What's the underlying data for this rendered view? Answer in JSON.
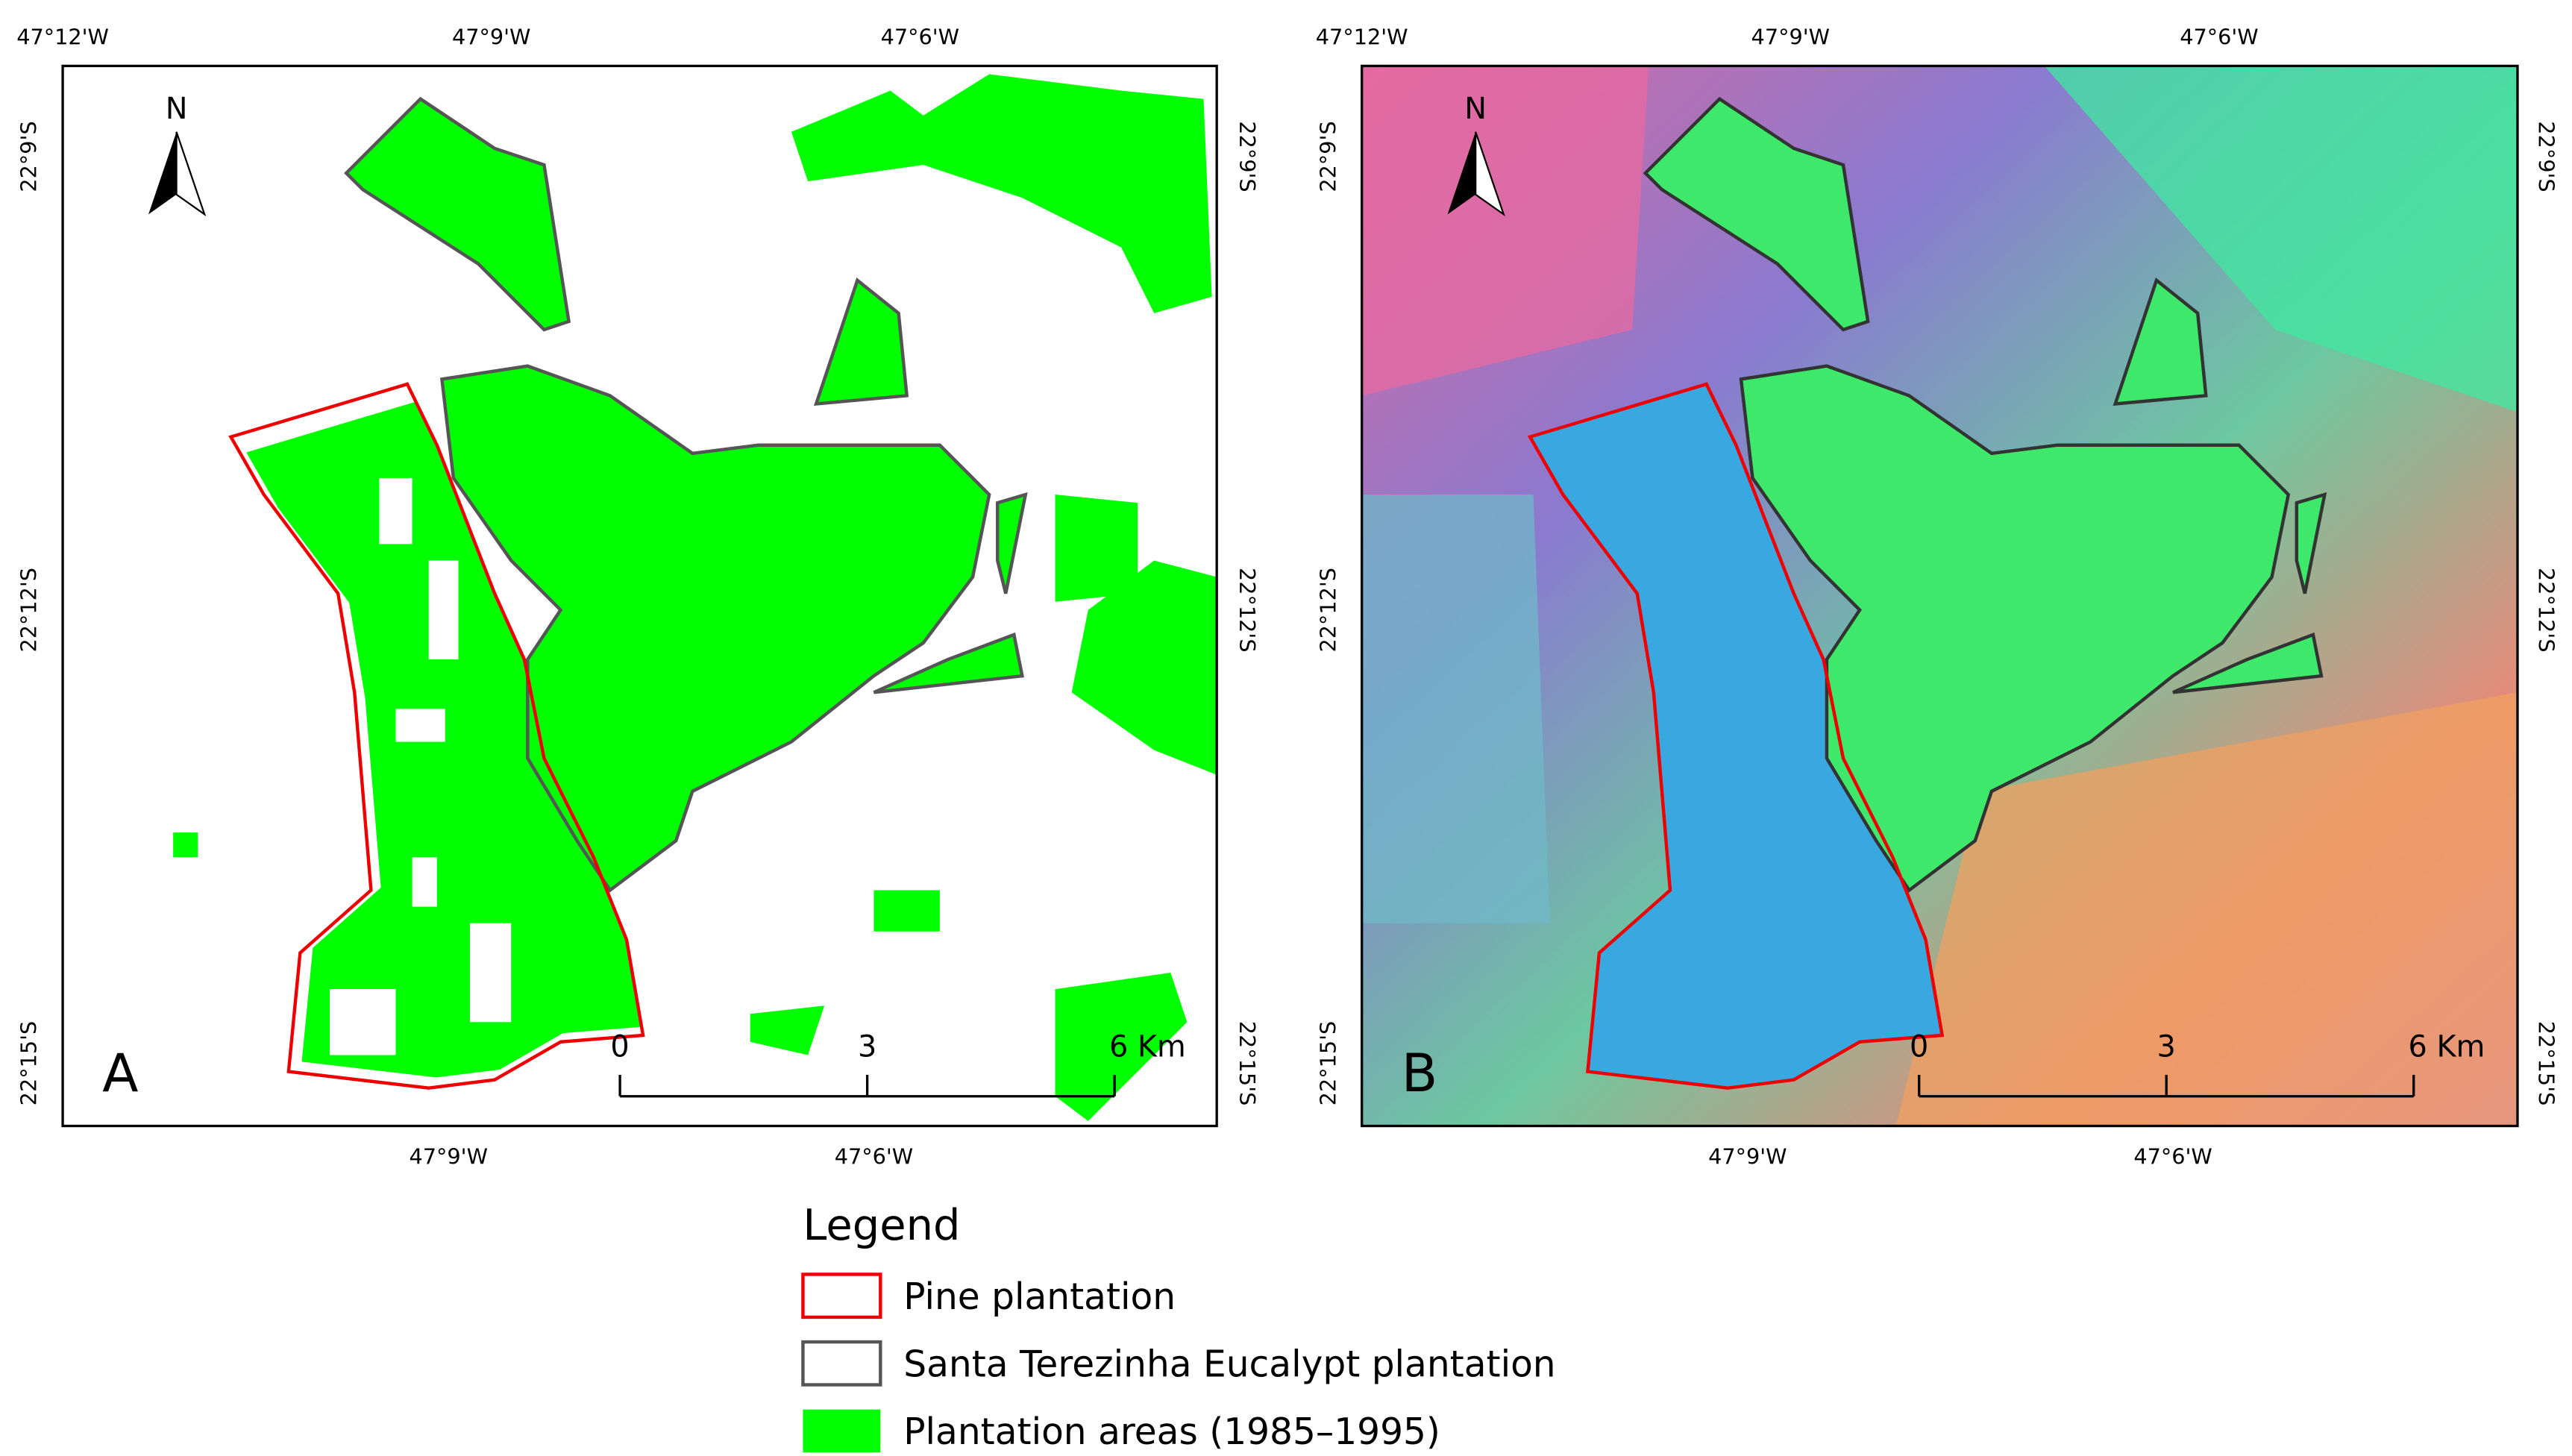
{
  "panels": [
    {
      "label": "A",
      "north": "N",
      "top_ticks": [
        "47°12'W",
        "47°9'W",
        "47°6'W"
      ],
      "bottom_ticks": [
        "47°9'W",
        "47°6'W"
      ],
      "left_ticks": [
        "22°9'S",
        "22°12'S",
        "22°15'S"
      ],
      "right_ticks": [
        "22°9'S",
        "22°12'S",
        "22°15'S"
      ],
      "scale_labels": [
        "0",
        "3",
        "6 Km"
      ]
    },
    {
      "label": "B",
      "north": "N",
      "top_ticks": [
        "47°12'W",
        "47°9'W",
        "47°6'W"
      ],
      "bottom_ticks": [
        "47°9'W",
        "47°6'W"
      ],
      "left_ticks": [
        "22°9'S",
        "22°12'S",
        "22°15'S"
      ],
      "right_ticks": [
        "22°9'S",
        "22°12'S",
        "22°15'S"
      ],
      "scale_labels": [
        "0",
        "3",
        "6 Km"
      ]
    }
  ],
  "legend": {
    "title": "Legend",
    "items": [
      "Pine plantation",
      "Santa Terezinha Eucalypt plantation",
      "Plantation areas (1985–1995)"
    ]
  }
}
